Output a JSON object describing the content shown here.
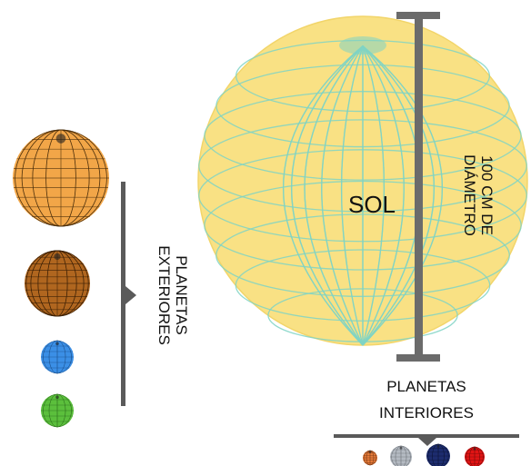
{
  "sun": {
    "label": "SOL",
    "diameter_label_line1": "100 CM DE",
    "diameter_label_line2": "DIÁMETRO",
    "fill_color": "#f9e184",
    "grid_color": "#7fd3c4"
  },
  "outer_planets": {
    "label_line1": "PLANETAS",
    "label_line2": "EXTERIORES",
    "planets": [
      {
        "icon": "jupiter-icon",
        "color": "#f2a648"
      },
      {
        "icon": "saturn-icon",
        "color": "#b0661f"
      },
      {
        "icon": "uranus-icon",
        "color": "#3b8fe6"
      },
      {
        "icon": "neptune-icon",
        "color": "#5bbf3c"
      }
    ]
  },
  "inner_planets": {
    "label_line1": "PLANETAS",
    "label_line2": "INTERIORES",
    "planets": [
      {
        "icon": "mercury-icon",
        "color": "#e67c3a"
      },
      {
        "icon": "venus-icon",
        "color": "#b4bac2"
      },
      {
        "icon": "earth-icon",
        "color": "#1d2c6e"
      },
      {
        "icon": "mars-icon",
        "color": "#e01414"
      }
    ]
  },
  "bracket_color": "#5a5a5a"
}
